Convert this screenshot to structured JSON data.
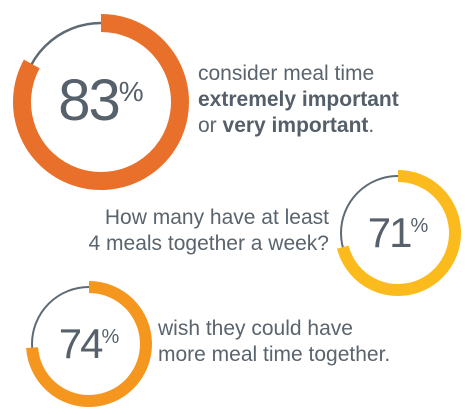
{
  "chart_data": [
    {
      "type": "pie",
      "value": 83,
      "value_label": "83",
      "unit": "%",
      "color": "#e8702a",
      "track_color": "#5f6a73",
      "caption": {
        "line1": "consider meal time",
        "line2_bold": "extremely important",
        "line3_pre": "or ",
        "line3_bold": "very important",
        "line3_post": "."
      }
    },
    {
      "type": "pie",
      "value": 71,
      "value_label": "71",
      "unit": "%",
      "color": "#fbbb1c",
      "track_color": "#5f6a73",
      "caption": {
        "line1": "How many have at least",
        "line2": "4 meals together a week?"
      }
    },
    {
      "type": "pie",
      "value": 74,
      "value_label": "74",
      "unit": "%",
      "color": "#f5961f",
      "track_color": "#5f6a73",
      "caption": {
        "line1": "wish they could have",
        "line2": "more meal time together."
      }
    }
  ]
}
